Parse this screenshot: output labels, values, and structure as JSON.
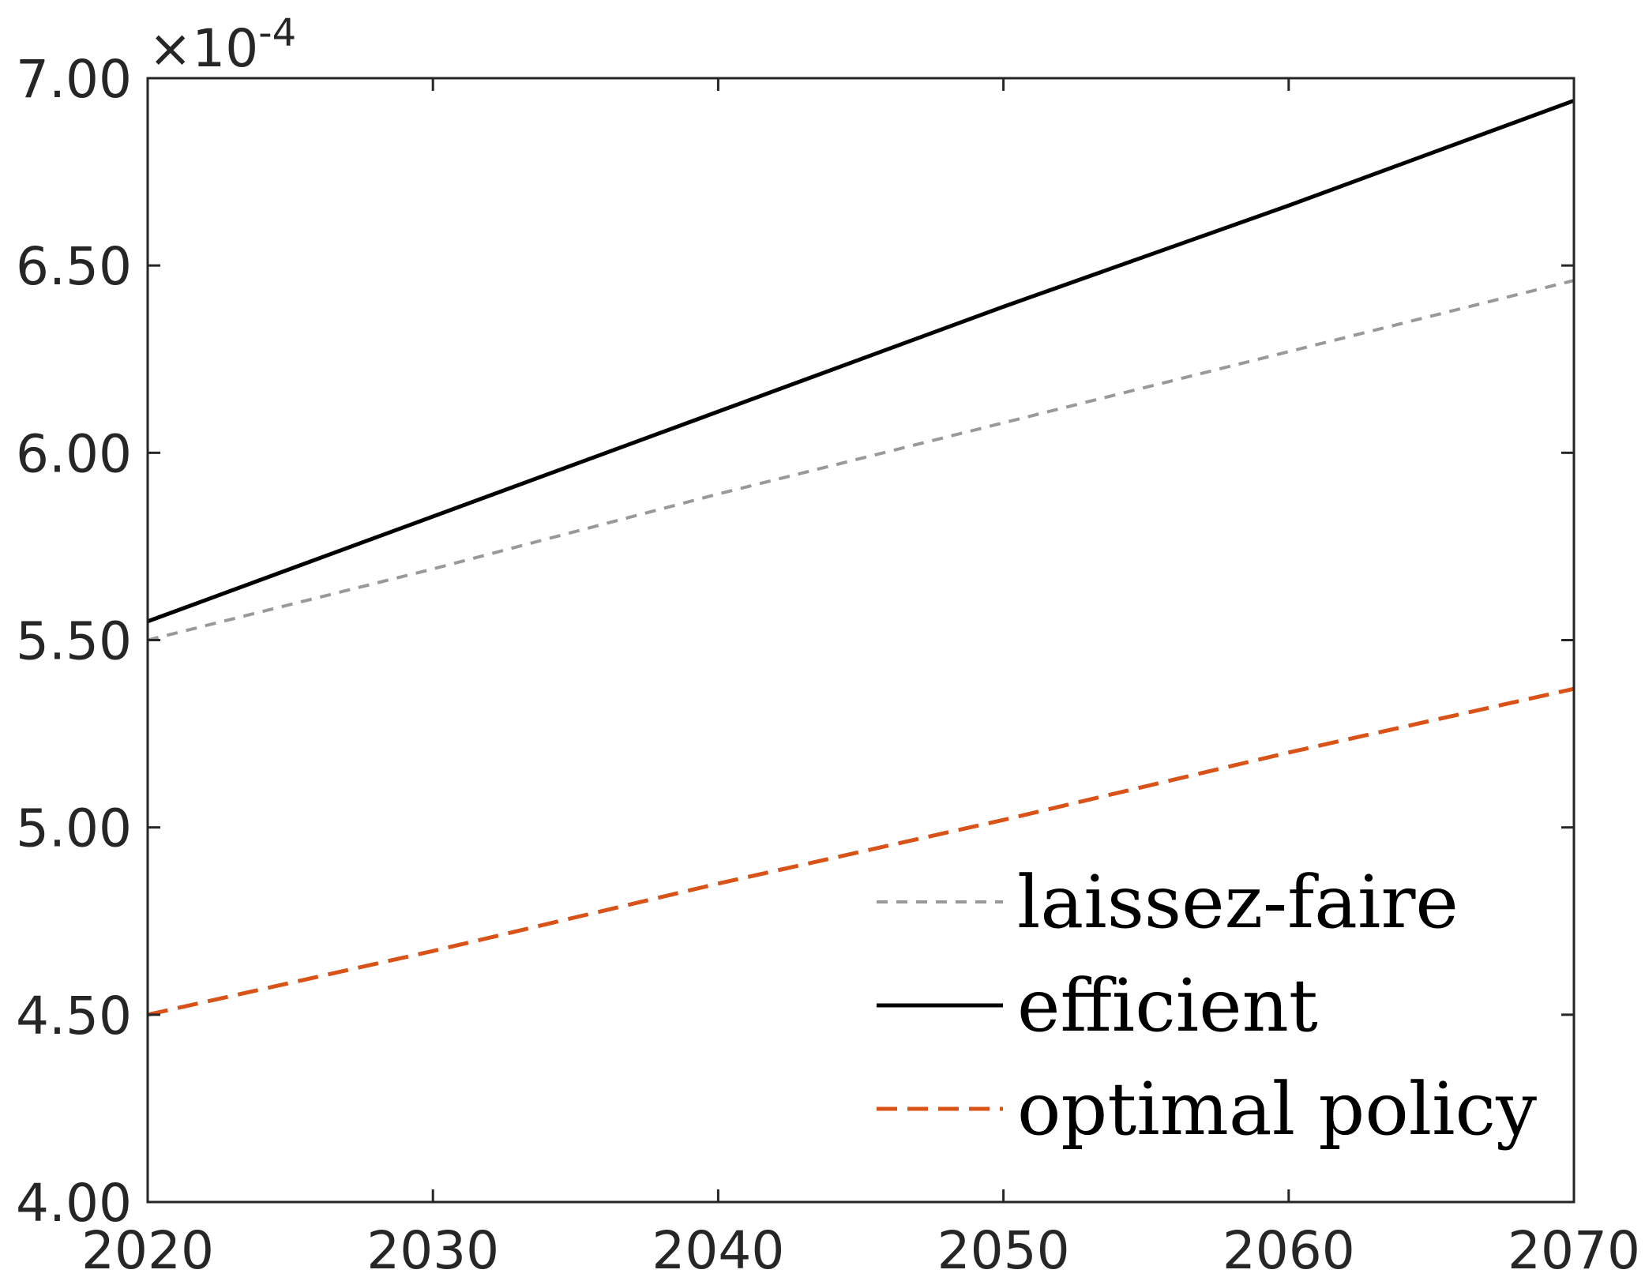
{
  "chart_data": {
    "type": "line",
    "title": "",
    "xlabel": "",
    "ylabel": "",
    "xlim": [
      2020,
      2070
    ],
    "ylim": [
      4.0,
      7.0
    ],
    "y_exponent_label": {
      "base": "×10",
      "power": "-4"
    },
    "x_ticks": [
      2020,
      2030,
      2040,
      2050,
      2060,
      2070
    ],
    "x_tick_labels": [
      "2020",
      "2030",
      "2040",
      "2050",
      "2060",
      "2070"
    ],
    "y_ticks": [
      4.0,
      4.5,
      5.0,
      5.5,
      6.0,
      6.5,
      7.0
    ],
    "y_tick_labels": [
      "4.00",
      "4.50",
      "5.00",
      "5.50",
      "6.00",
      "6.50",
      "7.00"
    ],
    "grid": false,
    "legend_position": "bottom-right",
    "x": [
      2020,
      2030,
      2040,
      2050,
      2060,
      2070
    ],
    "series": [
      {
        "name": "laissez-faire",
        "color": "#999999",
        "style": "dotted",
        "values": [
          5.5,
          5.69,
          5.89,
          6.08,
          6.27,
          6.46
        ]
      },
      {
        "name": "efficient",
        "color": "#000000",
        "style": "solid",
        "values": [
          5.55,
          5.83,
          6.11,
          6.39,
          6.66,
          6.94
        ]
      },
      {
        "name": "optimal policy",
        "color": "#D95319",
        "style": "dashed",
        "values": [
          4.5,
          4.67,
          4.85,
          5.02,
          5.2,
          5.37
        ]
      }
    ]
  }
}
